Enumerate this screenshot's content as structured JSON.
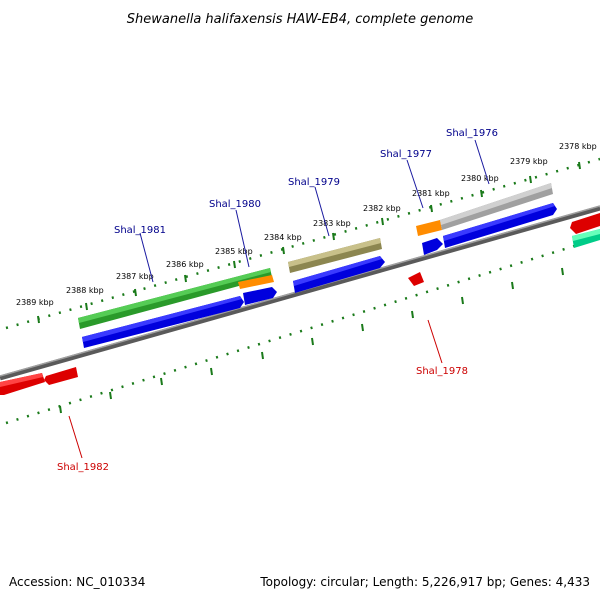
{
  "title": "Shewanella halifaxensis HAW-EB4, complete genome",
  "footer": {
    "accession": "Accession: NC_010334",
    "summary": "Topology: circular; Length: 5,226,917 bp; Genes: 4,433"
  },
  "ticks": [
    "2389 kbp",
    "2388 kbp",
    "2387 kbp",
    "2386 kbp",
    "2385 kbp",
    "2384 kbp",
    "2383 kbp",
    "2382 kbp",
    "2381 kbp",
    "2380 kbp",
    "2379 kbp",
    "2378 kbp"
  ],
  "genes": {
    "Shal_1976": "Shal_1976",
    "Shal_1977": "Shal_1977",
    "Shal_1978": "Shal_1978",
    "Shal_1979": "Shal_1979",
    "Shal_1980": "Shal_1980",
    "Shal_1981": "Shal_1981",
    "Shal_1982": "Shal_1982"
  },
  "colors": {
    "forward_label": "#00008b",
    "reverse_label": "#cc0000",
    "backbone": "#808080",
    "tick_track": "#1a7a1a",
    "cds": "#0000ee",
    "reverse_cds": "#ee0000",
    "cog_green": "#33bb33",
    "cog_orange": "#ff8c00",
    "cog_khaki": "#b8b070",
    "cog_gray": "#b8b8b8",
    "cog_teal": "#00ee99"
  }
}
